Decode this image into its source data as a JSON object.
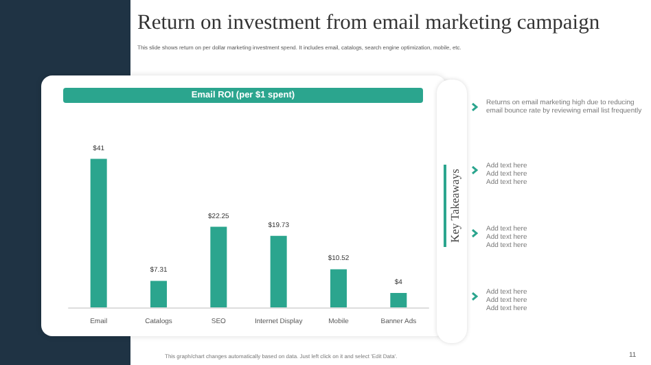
{
  "chart_data": {
    "type": "bar",
    "title": "Return on investment from email marketing campaign",
    "subtitle": "This slide shows return on per dollar marketing investment spend. It includes email, catalogs, search engine optimization, mobile, etc.",
    "categories": [
      "Email",
      "Catalogs",
      "SEO",
      "Internet Display",
      "Mobile",
      "Banner Ads"
    ],
    "values": [
      41,
      7.31,
      22.25,
      19.73,
      10.52,
      4
    ],
    "value_labels": [
      "$41",
      "$7.31",
      "$22.25",
      "$19.73",
      "$10.52",
      "$4"
    ],
    "color": "#2ba58e",
    "annotations": [
      "Email ROI (per $1 spent)",
      "Key Takeaways",
      "Returns on email marketing high due to reducing email bounce rate by reviewing email list frequently",
      "Add text here\nAdd text here\nAdd text here",
      "Add text here\nAdd text here\nAdd text here",
      "Add text here\nAdd text here\nAdd text here",
      "This graph/chart changes automatically based on data. Just left click on it and select 'Edit Data'.",
      "11"
    ]
  }
}
